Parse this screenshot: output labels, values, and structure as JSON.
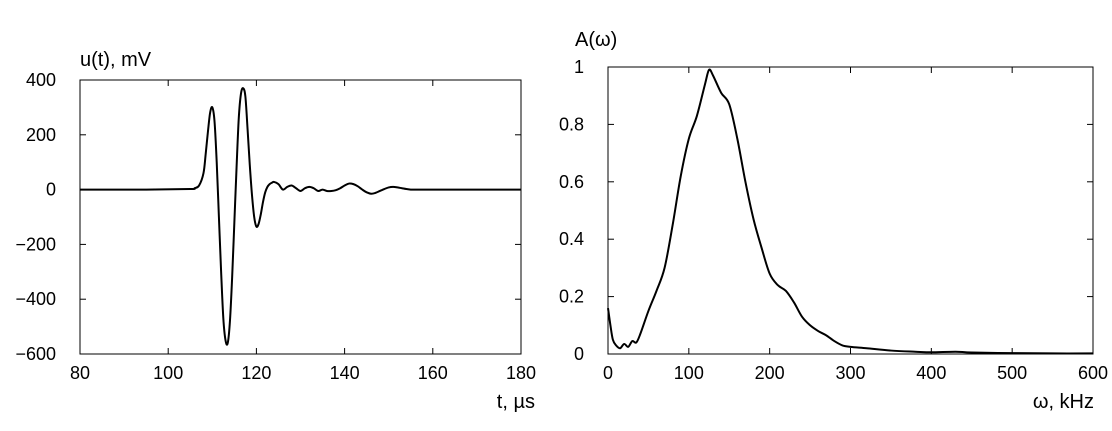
{
  "chart_data": [
    {
      "type": "line",
      "title": "",
      "ylabel": "u(t), mV",
      "xlabel": "t, µs",
      "xlim": [
        80,
        180
      ],
      "ylim": [
        -600,
        400
      ],
      "xticks": [
        80,
        100,
        120,
        140,
        160,
        180
      ],
      "yticks": [
        -600,
        -400,
        -200,
        0,
        200,
        400
      ],
      "xtick_labels": [
        "80",
        "100",
        "120",
        "140",
        "160",
        "180"
      ],
      "ytick_labels": [
        "−600",
        "−400",
        "−200",
        "0",
        "200",
        "400"
      ],
      "grid": false,
      "series": [
        {
          "color": "#000000",
          "x": [
            80,
            95,
            105,
            106,
            107,
            108,
            108.5,
            109,
            109.5,
            110,
            110.5,
            111,
            111.5,
            112,
            112.5,
            113,
            113.5,
            114,
            114.5,
            115,
            115.5,
            116,
            116.5,
            117,
            117.5,
            118,
            118.5,
            119,
            119.5,
            120,
            120.5,
            121,
            121.5,
            122,
            122.5,
            123,
            123.5,
            124,
            125,
            126,
            127,
            128,
            129,
            130,
            131,
            132,
            133,
            134,
            135,
            136,
            137,
            138,
            139,
            140,
            141,
            142,
            143,
            144,
            145,
            146,
            147,
            148,
            149,
            150,
            151,
            152,
            153,
            154,
            155,
            156,
            158,
            165,
            180
          ],
          "y": [
            0,
            0,
            2,
            5,
            15,
            60,
            130,
            210,
            280,
            300,
            250,
            100,
            -100,
            -300,
            -470,
            -550,
            -560,
            -480,
            -320,
            -120,
            80,
            260,
            350,
            370,
            340,
            220,
            90,
            -20,
            -100,
            -135,
            -125,
            -90,
            -45,
            -10,
            10,
            20,
            25,
            28,
            20,
            0,
            10,
            15,
            5,
            -5,
            5,
            10,
            5,
            -5,
            0,
            -5,
            -5,
            -2,
            5,
            15,
            22,
            20,
            12,
            0,
            -10,
            -15,
            -12,
            -5,
            2,
            8,
            10,
            8,
            5,
            2,
            0,
            0,
            0,
            0,
            0
          ]
        }
      ]
    },
    {
      "type": "line",
      "title": "",
      "ylabel": "A(ω)",
      "xlabel": "ω, kHz",
      "xlim": [
        0,
        600
      ],
      "ylim": [
        0,
        1
      ],
      "xticks": [
        0,
        100,
        200,
        300,
        400,
        500,
        600
      ],
      "yticks": [
        0,
        0.2,
        0.4,
        0.6,
        0.8,
        1
      ],
      "xtick_labels": [
        "0",
        "100",
        "200",
        "300",
        "400",
        "500",
        "600"
      ],
      "ytick_labels": [
        "0",
        "0.2",
        "0.4",
        "0.6",
        "0.8",
        "1"
      ],
      "grid": false,
      "series": [
        {
          "color": "#000000",
          "x": [
            0,
            3,
            6,
            10,
            15,
            20,
            25,
            30,
            35,
            40,
            50,
            60,
            70,
            80,
            90,
            100,
            110,
            120,
            125,
            130,
            140,
            150,
            160,
            170,
            180,
            190,
            200,
            210,
            220,
            230,
            240,
            250,
            260,
            270,
            280,
            290,
            300,
            320,
            350,
            380,
            400,
            430,
            450,
            500,
            550,
            600
          ],
          "y": [
            0.16,
            0.1,
            0.05,
            0.03,
            0.02,
            0.035,
            0.025,
            0.045,
            0.04,
            0.07,
            0.15,
            0.22,
            0.3,
            0.45,
            0.62,
            0.75,
            0.83,
            0.94,
            0.99,
            0.97,
            0.91,
            0.87,
            0.75,
            0.6,
            0.47,
            0.37,
            0.28,
            0.24,
            0.22,
            0.18,
            0.13,
            0.1,
            0.08,
            0.065,
            0.045,
            0.03,
            0.025,
            0.02,
            0.012,
            0.008,
            0.006,
            0.008,
            0.005,
            0.003,
            0.002,
            0.002
          ]
        }
      ]
    }
  ]
}
